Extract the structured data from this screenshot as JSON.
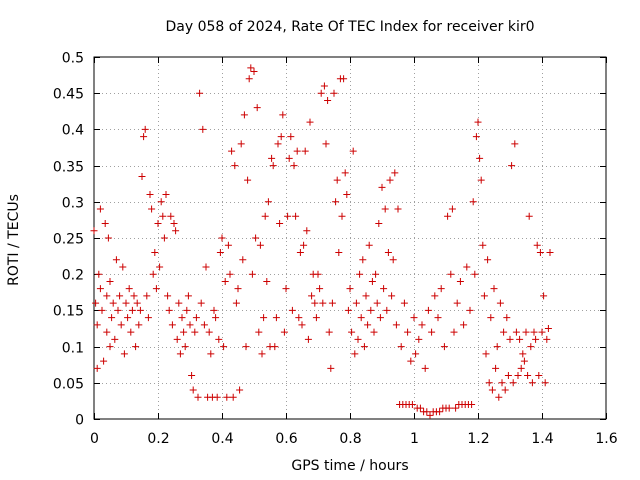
{
  "chart_data": {
    "type": "scatter",
    "title": "Day 058 of 2024, Rate Of TEC Index for receiver kir0",
    "xlabel": "GPS time / hours",
    "ylabel": "ROTI / TECUs",
    "xlim": [
      0,
      1.6
    ],
    "ylim": [
      0,
      0.5
    ],
    "xticks": [
      0,
      0.2,
      0.4,
      0.6,
      0.8,
      1,
      1.2,
      1.4,
      1.6
    ],
    "xtick_labels": [
      "0",
      "0.2",
      "0.4",
      "0.6",
      "0.8",
      "1",
      "1.2",
      "1.4",
      "1.6"
    ],
    "yticks": [
      0,
      0.05,
      0.1,
      0.15,
      0.2,
      0.25,
      0.3,
      0.35,
      0.4,
      0.45,
      0.5
    ],
    "ytick_labels": [
      "0",
      "0.05",
      "0.1",
      "0.15",
      "0.2",
      "0.25",
      "0.3",
      "0.35",
      "0.4",
      "0.45",
      "0.5"
    ],
    "grid": true,
    "marker": "+",
    "color": "#cc0000",
    "series": [
      {
        "name": "ROTI",
        "points": [
          [
            0.0,
            0.26
          ],
          [
            0.005,
            0.16
          ],
          [
            0.01,
            0.13
          ],
          [
            0.01,
            0.07
          ],
          [
            0.015,
            0.2
          ],
          [
            0.02,
            0.29
          ],
          [
            0.02,
            0.18
          ],
          [
            0.025,
            0.15
          ],
          [
            0.03,
            0.08
          ],
          [
            0.035,
            0.27
          ],
          [
            0.04,
            0.17
          ],
          [
            0.04,
            0.12
          ],
          [
            0.045,
            0.25
          ],
          [
            0.05,
            0.1
          ],
          [
            0.05,
            0.19
          ],
          [
            0.055,
            0.14
          ],
          [
            0.06,
            0.16
          ],
          [
            0.065,
            0.11
          ],
          [
            0.07,
            0.22
          ],
          [
            0.075,
            0.15
          ],
          [
            0.08,
            0.17
          ],
          [
            0.085,
            0.13
          ],
          [
            0.09,
            0.21
          ],
          [
            0.095,
            0.09
          ],
          [
            0.1,
            0.16
          ],
          [
            0.105,
            0.14
          ],
          [
            0.11,
            0.18
          ],
          [
            0.115,
            0.12
          ],
          [
            0.12,
            0.15
          ],
          [
            0.125,
            0.17
          ],
          [
            0.13,
            0.1
          ],
          [
            0.135,
            0.16
          ],
          [
            0.14,
            0.13
          ],
          [
            0.145,
            0.15
          ],
          [
            0.15,
            0.335
          ],
          [
            0.155,
            0.39
          ],
          [
            0.16,
            0.4
          ],
          [
            0.165,
            0.17
          ],
          [
            0.17,
            0.14
          ],
          [
            0.175,
            0.31
          ],
          [
            0.18,
            0.29
          ],
          [
            0.185,
            0.2
          ],
          [
            0.19,
            0.23
          ],
          [
            0.195,
            0.18
          ],
          [
            0.2,
            0.27
          ],
          [
            0.205,
            0.21
          ],
          [
            0.21,
            0.3
          ],
          [
            0.215,
            0.28
          ],
          [
            0.22,
            0.25
          ],
          [
            0.225,
            0.31
          ],
          [
            0.23,
            0.17
          ],
          [
            0.235,
            0.15
          ],
          [
            0.24,
            0.28
          ],
          [
            0.245,
            0.13
          ],
          [
            0.25,
            0.27
          ],
          [
            0.255,
            0.26
          ],
          [
            0.26,
            0.11
          ],
          [
            0.265,
            0.16
          ],
          [
            0.27,
            0.09
          ],
          [
            0.275,
            0.14
          ],
          [
            0.28,
            0.12
          ],
          [
            0.285,
            0.1
          ],
          [
            0.29,
            0.15
          ],
          [
            0.295,
            0.17
          ],
          [
            0.3,
            0.13
          ],
          [
            0.305,
            0.06
          ],
          [
            0.31,
            0.04
          ],
          [
            0.315,
            0.12
          ],
          [
            0.32,
            0.14
          ],
          [
            0.325,
            0.03
          ],
          [
            0.33,
            0.45
          ],
          [
            0.335,
            0.16
          ],
          [
            0.34,
            0.4
          ],
          [
            0.345,
            0.13
          ],
          [
            0.35,
            0.21
          ],
          [
            0.355,
            0.03
          ],
          [
            0.36,
            0.12
          ],
          [
            0.365,
            0.09
          ],
          [
            0.37,
            0.03
          ],
          [
            0.375,
            0.15
          ],
          [
            0.38,
            0.14
          ],
          [
            0.385,
            0.03
          ],
          [
            0.39,
            0.11
          ],
          [
            0.395,
            0.23
          ],
          [
            0.4,
            0.25
          ],
          [
            0.405,
            0.1
          ],
          [
            0.41,
            0.19
          ],
          [
            0.415,
            0.03
          ],
          [
            0.42,
            0.24
          ],
          [
            0.425,
            0.2
          ],
          [
            0.43,
            0.37
          ],
          [
            0.435,
            0.03
          ],
          [
            0.44,
            0.35
          ],
          [
            0.445,
            0.16
          ],
          [
            0.45,
            0.18
          ],
          [
            0.455,
            0.04
          ],
          [
            0.46,
            0.38
          ],
          [
            0.465,
            0.22
          ],
          [
            0.47,
            0.42
          ],
          [
            0.475,
            0.1
          ],
          [
            0.48,
            0.33
          ],
          [
            0.485,
            0.47
          ],
          [
            0.49,
            0.485
          ],
          [
            0.495,
            0.2
          ],
          [
            0.5,
            0.48
          ],
          [
            0.505,
            0.25
          ],
          [
            0.51,
            0.43
          ],
          [
            0.515,
            0.12
          ],
          [
            0.52,
            0.24
          ],
          [
            0.525,
            0.09
          ],
          [
            0.53,
            0.14
          ],
          [
            0.535,
            0.28
          ],
          [
            0.54,
            0.19
          ],
          [
            0.545,
            0.3
          ],
          [
            0.55,
            0.1
          ],
          [
            0.555,
            0.36
          ],
          [
            0.56,
            0.35
          ],
          [
            0.565,
            0.1
          ],
          [
            0.57,
            0.14
          ],
          [
            0.575,
            0.38
          ],
          [
            0.58,
            0.27
          ],
          [
            0.585,
            0.39
          ],
          [
            0.59,
            0.42
          ],
          [
            0.595,
            0.12
          ],
          [
            0.6,
            0.18
          ],
          [
            0.605,
            0.28
          ],
          [
            0.61,
            0.36
          ],
          [
            0.615,
            0.39
          ],
          [
            0.62,
            0.15
          ],
          [
            0.625,
            0.35
          ],
          [
            0.63,
            0.28
          ],
          [
            0.635,
            0.37
          ],
          [
            0.64,
            0.14
          ],
          [
            0.645,
            0.23
          ],
          [
            0.65,
            0.13
          ],
          [
            0.655,
            0.24
          ],
          [
            0.66,
            0.37
          ],
          [
            0.665,
            0.26
          ],
          [
            0.67,
            0.11
          ],
          [
            0.675,
            0.41
          ],
          [
            0.68,
            0.17
          ],
          [
            0.685,
            0.2
          ],
          [
            0.69,
            0.16
          ],
          [
            0.695,
            0.14
          ],
          [
            0.7,
            0.2
          ],
          [
            0.705,
            0.18
          ],
          [
            0.71,
            0.45
          ],
          [
            0.715,
            0.16
          ],
          [
            0.72,
            0.46
          ],
          [
            0.725,
            0.38
          ],
          [
            0.73,
            0.44
          ],
          [
            0.735,
            0.12
          ],
          [
            0.74,
            0.07
          ],
          [
            0.745,
            0.16
          ],
          [
            0.75,
            0.45
          ],
          [
            0.755,
            0.3
          ],
          [
            0.76,
            0.33
          ],
          [
            0.765,
            0.23
          ],
          [
            0.77,
            0.47
          ],
          [
            0.775,
            0.28
          ],
          [
            0.78,
            0.47
          ],
          [
            0.785,
            0.34
          ],
          [
            0.79,
            0.31
          ],
          [
            0.795,
            0.15
          ],
          [
            0.8,
            0.18
          ],
          [
            0.805,
            0.12
          ],
          [
            0.81,
            0.37
          ],
          [
            0.815,
            0.09
          ],
          [
            0.82,
            0.16
          ],
          [
            0.825,
            0.11
          ],
          [
            0.83,
            0.2
          ],
          [
            0.835,
            0.14
          ],
          [
            0.84,
            0.22
          ],
          [
            0.845,
            0.1
          ],
          [
            0.85,
            0.17
          ],
          [
            0.855,
            0.13
          ],
          [
            0.86,
            0.24
          ],
          [
            0.865,
            0.15
          ],
          [
            0.87,
            0.19
          ],
          [
            0.875,
            0.12
          ],
          [
            0.88,
            0.2
          ],
          [
            0.885,
            0.16
          ],
          [
            0.89,
            0.27
          ],
          [
            0.895,
            0.14
          ],
          [
            0.9,
            0.32
          ],
          [
            0.905,
            0.18
          ],
          [
            0.91,
            0.29
          ],
          [
            0.915,
            0.15
          ],
          [
            0.92,
            0.23
          ],
          [
            0.925,
            0.33
          ],
          [
            0.93,
            0.17
          ],
          [
            0.935,
            0.22
          ],
          [
            0.94,
            0.34
          ],
          [
            0.945,
            0.13
          ],
          [
            0.95,
            0.29
          ],
          [
            0.955,
            0.02
          ],
          [
            0.96,
            0.1
          ],
          [
            0.965,
            0.02
          ],
          [
            0.97,
            0.16
          ],
          [
            0.975,
            0.02
          ],
          [
            0.98,
            0.12
          ],
          [
            0.985,
            0.02
          ],
          [
            0.99,
            0.08
          ],
          [
            0.995,
            0.02
          ],
          [
            1.0,
            0.14
          ],
          [
            1.005,
            0.09
          ],
          [
            1.01,
            0.015
          ],
          [
            1.015,
            0.11
          ],
          [
            1.02,
            0.015
          ],
          [
            1.025,
            0.13
          ],
          [
            1.03,
            0.01
          ],
          [
            1.035,
            0.07
          ],
          [
            1.04,
            0.01
          ],
          [
            1.045,
            0.15
          ],
          [
            1.05,
            0.005
          ],
          [
            1.055,
            0.12
          ],
          [
            1.06,
            0.01
          ],
          [
            1.065,
            0.17
          ],
          [
            1.07,
            0.01
          ],
          [
            1.075,
            0.14
          ],
          [
            1.08,
            0.01
          ],
          [
            1.085,
            0.18
          ],
          [
            1.09,
            0.015
          ],
          [
            1.095,
            0.1
          ],
          [
            1.1,
            0.015
          ],
          [
            1.105,
            0.28
          ],
          [
            1.11,
            0.015
          ],
          [
            1.115,
            0.2
          ],
          [
            1.12,
            0.29
          ],
          [
            1.125,
            0.12
          ],
          [
            1.13,
            0.015
          ],
          [
            1.135,
            0.16
          ],
          [
            1.14,
            0.02
          ],
          [
            1.145,
            0.19
          ],
          [
            1.15,
            0.02
          ],
          [
            1.155,
            0.13
          ],
          [
            1.16,
            0.02
          ],
          [
            1.165,
            0.21
          ],
          [
            1.17,
            0.02
          ],
          [
            1.175,
            0.15
          ],
          [
            1.18,
            0.02
          ],
          [
            1.185,
            0.3
          ],
          [
            1.19,
            0.2
          ],
          [
            1.195,
            0.39
          ],
          [
            1.2,
            0.41
          ],
          [
            1.205,
            0.36
          ],
          [
            1.21,
            0.33
          ],
          [
            1.215,
            0.24
          ],
          [
            1.22,
            0.17
          ],
          [
            1.225,
            0.09
          ],
          [
            1.23,
            0.22
          ],
          [
            1.235,
            0.05
          ],
          [
            1.24,
            0.14
          ],
          [
            1.245,
            0.04
          ],
          [
            1.25,
            0.18
          ],
          [
            1.255,
            0.07
          ],
          [
            1.26,
            0.1
          ],
          [
            1.265,
            0.03
          ],
          [
            1.27,
            0.16
          ],
          [
            1.275,
            0.05
          ],
          [
            1.28,
            0.12
          ],
          [
            1.285,
            0.04
          ],
          [
            1.29,
            0.14
          ],
          [
            1.295,
            0.06
          ],
          [
            1.3,
            0.11
          ],
          [
            1.305,
            0.35
          ],
          [
            1.31,
            0.05
          ],
          [
            1.315,
            0.38
          ],
          [
            1.32,
            0.12
          ],
          [
            1.325,
            0.06
          ],
          [
            1.33,
            0.11
          ],
          [
            1.335,
            0.07
          ],
          [
            1.34,
            0.09
          ],
          [
            1.345,
            0.08
          ],
          [
            1.35,
            0.12
          ],
          [
            1.355,
            0.06
          ],
          [
            1.36,
            0.28
          ],
          [
            1.365,
            0.1
          ],
          [
            1.37,
            0.05
          ],
          [
            1.375,
            0.12
          ],
          [
            1.38,
            0.11
          ],
          [
            1.385,
            0.24
          ],
          [
            1.39,
            0.06
          ],
          [
            1.395,
            0.23
          ],
          [
            1.4,
            0.12
          ],
          [
            1.405,
            0.17
          ],
          [
            1.41,
            0.05
          ],
          [
            1.415,
            0.11
          ],
          [
            1.42,
            0.125
          ],
          [
            1.425,
            0.23
          ]
        ]
      }
    ]
  }
}
